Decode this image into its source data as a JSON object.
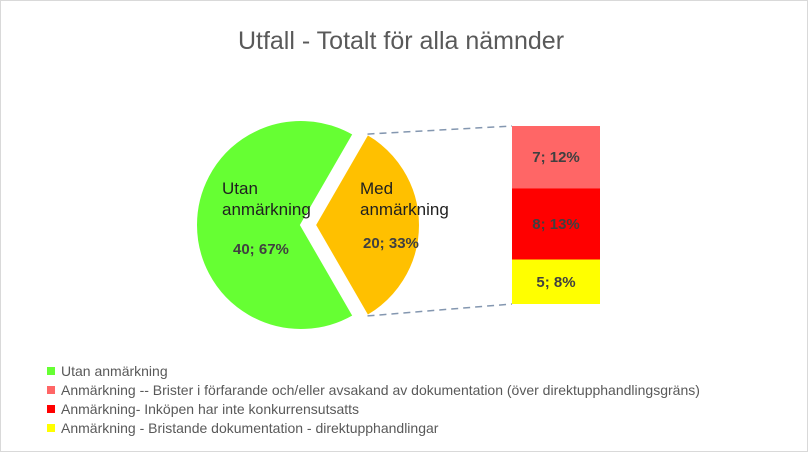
{
  "chart_data": {
    "type": "pie",
    "subtype": "bar-of-pie",
    "title": "Utfall - Totalt för alla nämnder",
    "pie": [
      {
        "label_lines": [
          "Utan",
          "anmärkning"
        ],
        "value": 40,
        "percent": 67,
        "value_label": "40; 67%",
        "color": "#66ff33"
      },
      {
        "label_lines": [
          "Med",
          "anmärkning"
        ],
        "value": 20,
        "percent": 33,
        "value_label": "20; 33%",
        "color": "#ffc000"
      }
    ],
    "breakdown": [
      {
        "value": 7,
        "percent": 12,
        "value_label": "7; 12%",
        "color": "#ff6666"
      },
      {
        "value": 8,
        "percent": 13,
        "value_label": "8; 13%",
        "color": "#ff0000"
      },
      {
        "value": 5,
        "percent": 8,
        "value_label": "5; 8%",
        "color": "#ffff00"
      }
    ],
    "legend": [
      {
        "label": "Utan anmärkning",
        "color": "#66ff33"
      },
      {
        "label": "Anmärkning -- Brister i förfarande och/eller avsakand av dokumentation (över direktupphandlingsgräns)",
        "color": "#ff6666"
      },
      {
        "label": "Anmärkning- Inköpen har inte konkurrensutsatts",
        "color": "#ff0000"
      },
      {
        "label": "Anmärkning - Bristande dokumentation - direktupphandlingar",
        "color": "#ffff00"
      }
    ],
    "legend_position": "bottom-left"
  }
}
